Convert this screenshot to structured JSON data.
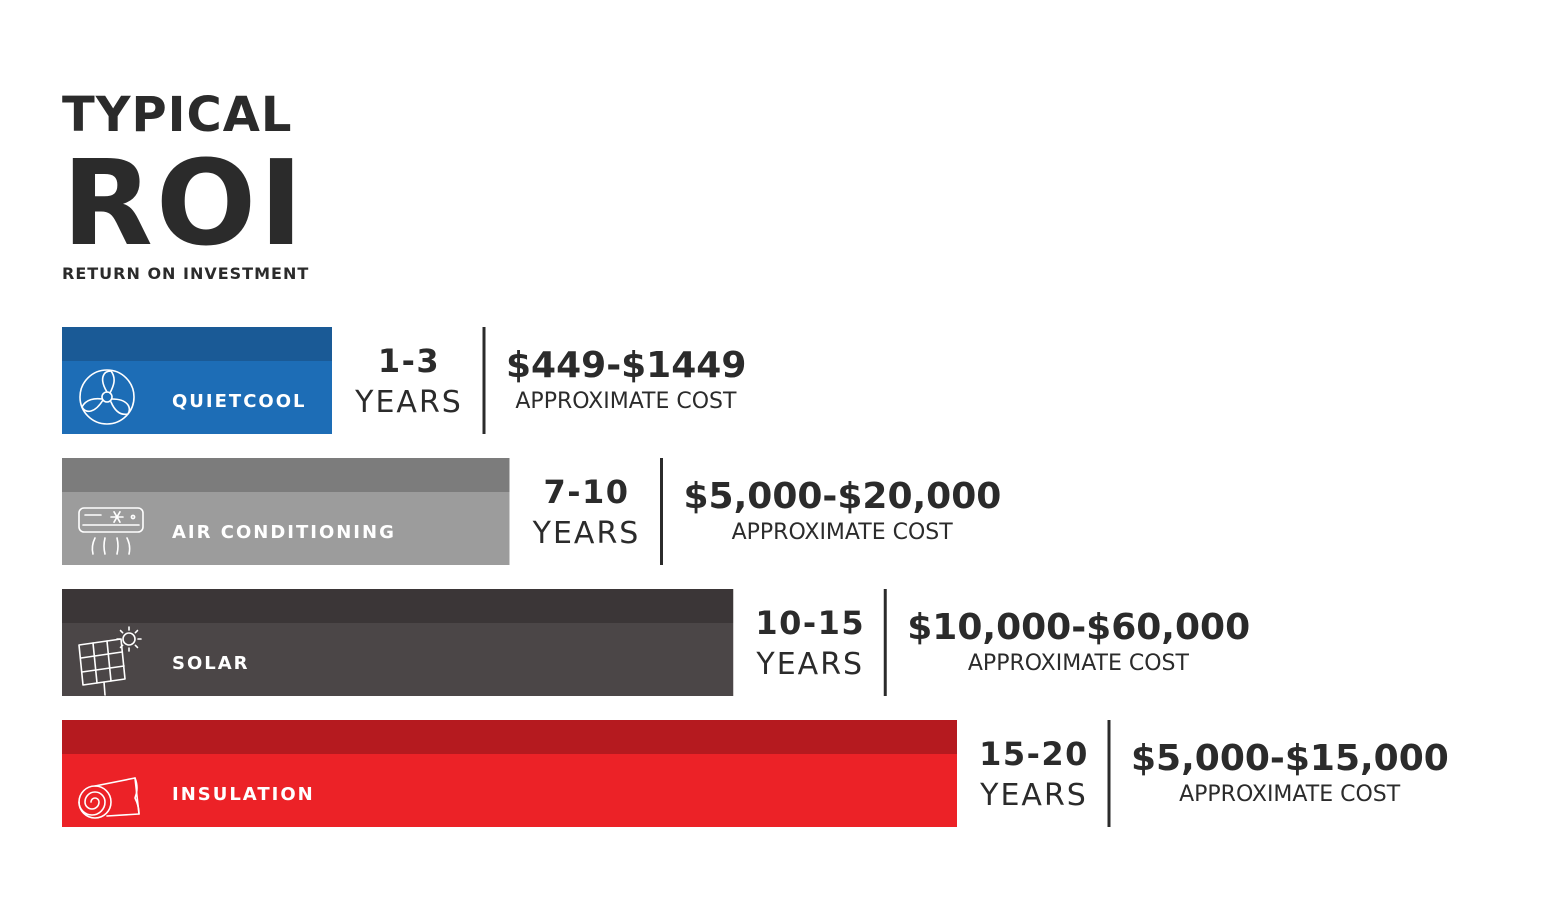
{
  "header": {
    "title_line1": "TYPICAL",
    "title_line2": "ROI",
    "subtitle": "RETURN ON INVESTMENT"
  },
  "chart_data": {
    "type": "bar",
    "orientation": "horizontal",
    "value_unit": "years",
    "bars": [
      {
        "label": "QUIETCOOL",
        "icon": "fan-icon",
        "years_min": 1,
        "years_max": 3,
        "years_range": "1-3",
        "years_word": "YEARS",
        "cost": "$449-$1449",
        "cost_label": "APPROXIMATE COST",
        "color_top": "#1a5a96",
        "color_main": "#1d6db6"
      },
      {
        "label": "AIR CONDITIONING",
        "icon": "air-conditioner-icon",
        "years_min": 7,
        "years_max": 10,
        "years_range": "7-10",
        "years_word": "YEARS",
        "cost": "$5,000-$20,000",
        "cost_label": "APPROXIMATE COST",
        "color_top": "#7c7c7c",
        "color_main": "#9c9c9c"
      },
      {
        "label": "SOLAR",
        "icon": "solar-panel-icon",
        "years_min": 10,
        "years_max": 15,
        "years_range": "10-15",
        "years_word": "YEARS",
        "cost": "$10,000-$60,000",
        "cost_label": "APPROXIMATE COST",
        "color_top": "#3b3637",
        "color_main": "#4b4647"
      },
      {
        "label": "INSULATION",
        "icon": "insulation-roll-icon",
        "years_min": 15,
        "years_max": 20,
        "years_range": "15-20",
        "years_word": "YEARS",
        "cost": "$5,000-$15,000",
        "cost_label": "APPROXIMATE COST",
        "color_top": "#b51a1f",
        "color_main": "#ec2227"
      }
    ]
  }
}
